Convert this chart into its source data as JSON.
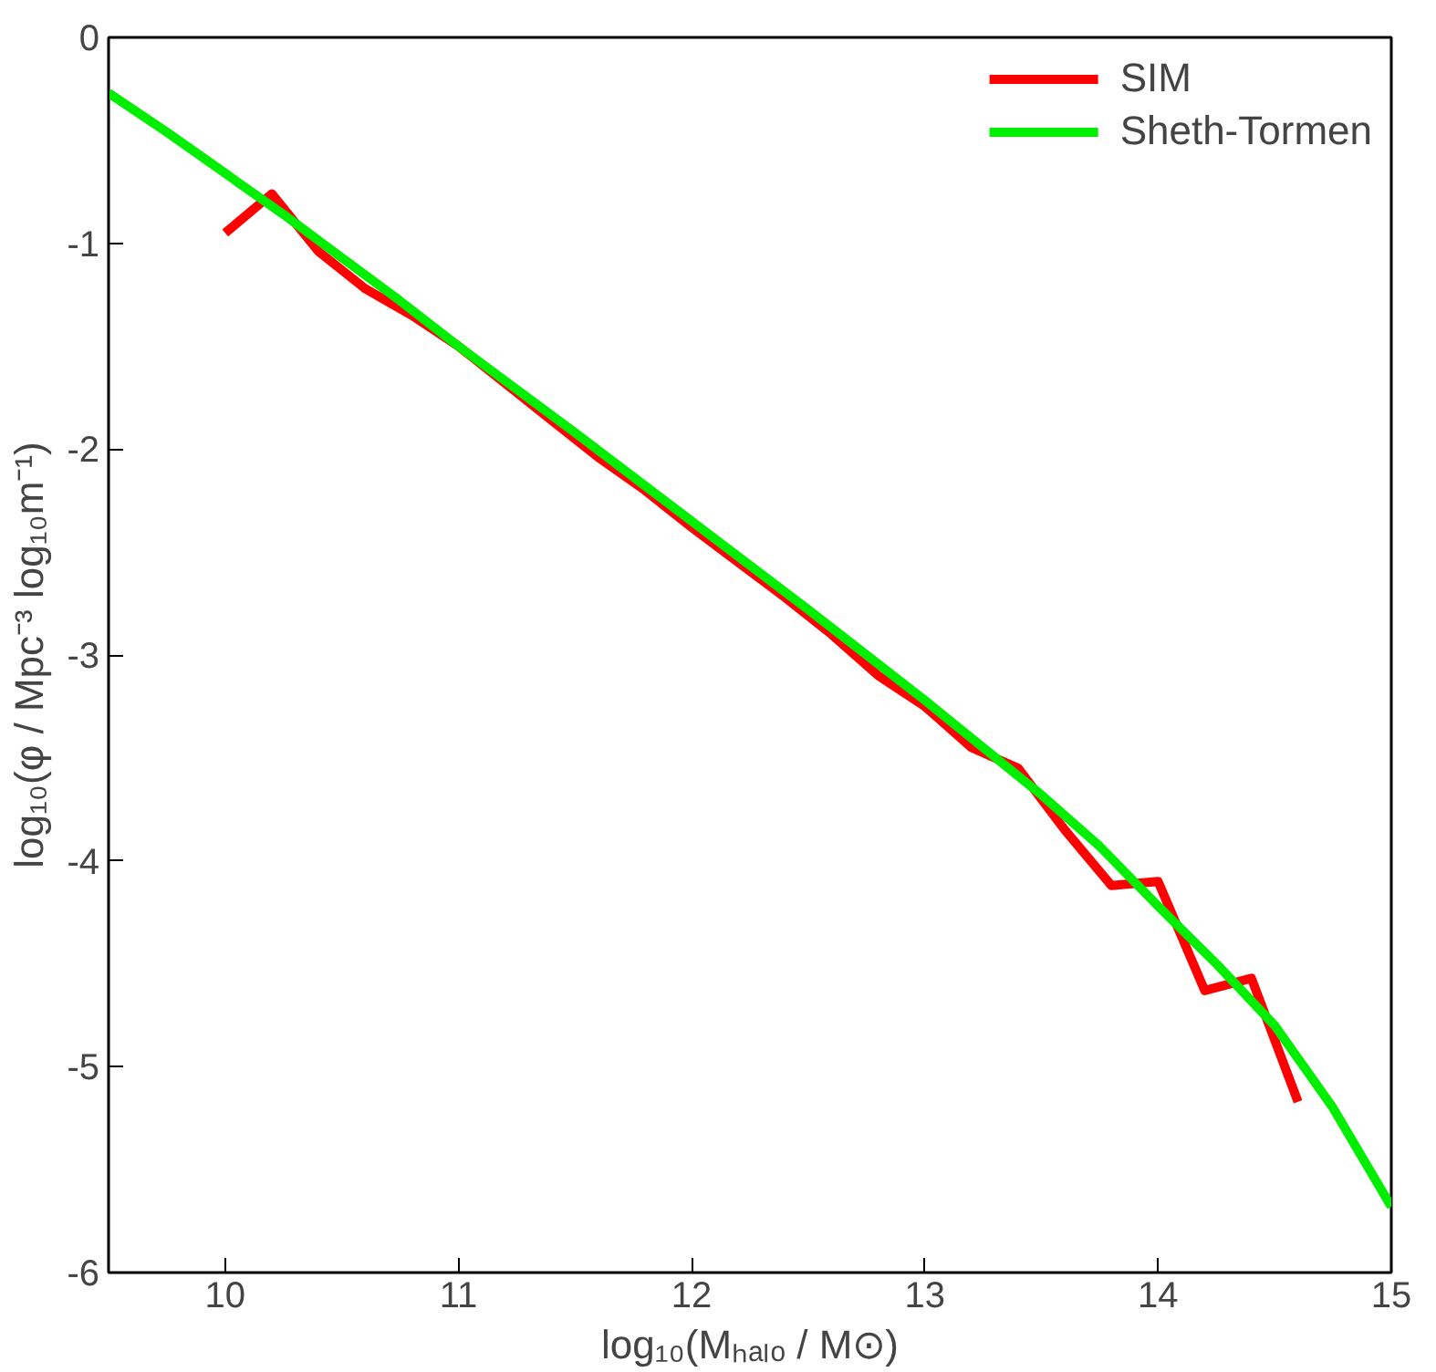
{
  "chart_data": {
    "type": "line",
    "xlabel": "log₁₀(Mₕₐₗₒ / M⊙)",
    "ylabel": "log₁₀(φ / Mpc⁻³ log₁₀m⁻¹)",
    "xlim": [
      9.5,
      15
    ],
    "ylim": [
      -6,
      0
    ],
    "xticks": [
      10,
      11,
      12,
      13,
      14,
      15
    ],
    "yticks": [
      -6,
      -5,
      -4,
      -3,
      -2,
      -1,
      0
    ],
    "grid": false,
    "legend": "top right",
    "line_style": "solid",
    "marker": "none",
    "series": [
      {
        "name": "SIM",
        "color": "#ff0000",
        "x": [
          10.0,
          10.2,
          10.4,
          10.6,
          10.8,
          11.0,
          11.2,
          11.4,
          11.6,
          11.8,
          12.0,
          12.2,
          12.4,
          12.6,
          12.8,
          13.0,
          13.2,
          13.4,
          13.6,
          13.8,
          14.0,
          14.2,
          14.4,
          14.6
        ],
        "values": [
          -0.95,
          -0.76,
          -1.04,
          -1.22,
          -1.35,
          -1.5,
          -1.68,
          -1.86,
          -2.04,
          -2.2,
          -2.38,
          -2.55,
          -2.72,
          -2.9,
          -3.1,
          -3.25,
          -3.45,
          -3.55,
          -3.85,
          -4.12,
          -4.1,
          -4.63,
          -4.57,
          -5.17
        ]
      },
      {
        "name": "Sheth-Tormen",
        "color": "#00ee00",
        "x": [
          9.5,
          9.75,
          10.0,
          10.25,
          10.5,
          10.75,
          11.0,
          11.5,
          12.0,
          12.5,
          13.0,
          13.5,
          13.75,
          14.0,
          14.25,
          14.5,
          14.75,
          15.0
        ],
        "values": [
          -0.27,
          -0.46,
          -0.66,
          -0.86,
          -1.07,
          -1.28,
          -1.5,
          -1.92,
          -2.35,
          -2.78,
          -3.22,
          -3.68,
          -3.93,
          -4.22,
          -4.5,
          -4.8,
          -5.2,
          -5.68
        ]
      }
    ]
  }
}
